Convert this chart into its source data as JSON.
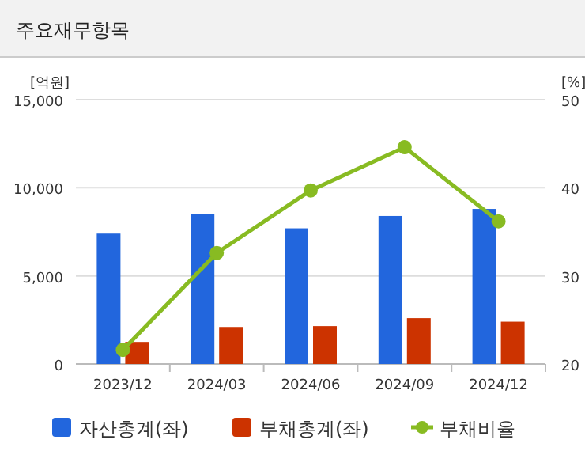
{
  "chart_data": {
    "type": "bar",
    "title": "주요재무항목",
    "ylabel": "[억원]",
    "y2label": "[%]",
    "categories": [
      "2023/12",
      "2024/03",
      "2024/06",
      "2024/09",
      "2024/12"
    ],
    "series": [
      {
        "name": "자산총계(좌)",
        "color": "#2266dd",
        "values": [
          7400,
          8500,
          7700,
          8400,
          8800
        ]
      },
      {
        "name": "부채총계(좌)",
        "color": "#cc3300",
        "values": [
          1250,
          2100,
          2150,
          2600,
          2400
        ]
      },
      {
        "name": "부채비율",
        "type": "line",
        "axis": "y2",
        "color": "#88bb22",
        "values": [
          21.6,
          32.6,
          39.7,
          44.6,
          36.2
        ]
      }
    ],
    "ylim": [
      0,
      15000
    ],
    "yticks": [
      {
        "value": 0,
        "label": "0"
      },
      {
        "value": 5000,
        "label": "5,000"
      },
      {
        "value": 10000,
        "label": "10,000"
      },
      {
        "value": 15000,
        "label": "15,000"
      }
    ],
    "y2lim": [
      20,
      50
    ],
    "y2ticks": [
      20,
      30,
      40,
      50
    ],
    "grid": "y",
    "legend": "bottom",
    "marker": "circle"
  }
}
